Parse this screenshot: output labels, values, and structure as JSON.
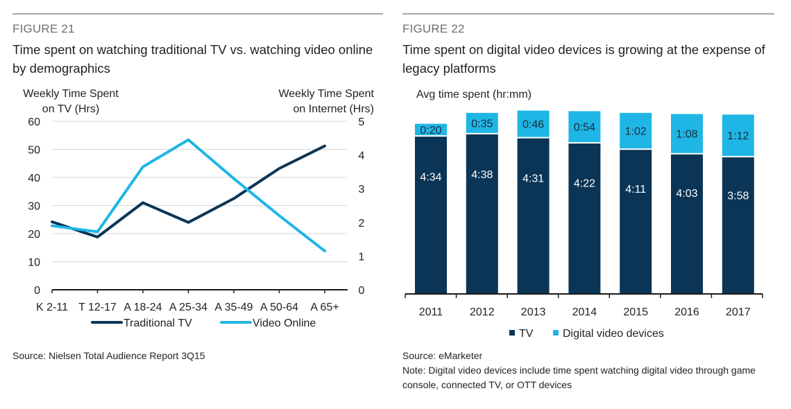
{
  "figures": [
    {
      "label": "FIGURE 21",
      "title": "Time spent on watching traditional TV vs. watching video online by demographics",
      "source": "Source: Nielsen Total Audience Report 3Q15"
    },
    {
      "label": "FIGURE 22",
      "title": "Time spent on digital video devices is growing at the expense of legacy platforms",
      "source": "Source: eMarketer",
      "note": "Note: Digital video devices include time spent watching digital video through game console, connected TV, or OTT devices"
    }
  ],
  "colors": {
    "tv": "#0b3556",
    "video": "#1fb6e6",
    "grid": "#dcdcdc",
    "axis": "#1a1a1a"
  },
  "chart_data": [
    {
      "type": "line",
      "title": "Time spent on watching traditional TV vs. watching video online by demographics",
      "categories": [
        "K 2-11",
        "T 12-17",
        "A 18-24",
        "A 25-34",
        "A 35-49",
        "A 50-64",
        "A 65+"
      ],
      "y_left_label": [
        "Weekly Time Spent",
        "on  TV (Hrs)"
      ],
      "y_right_label": [
        "Weekly Time Spent",
        "on Internet (Hrs)"
      ],
      "y_left_lim": [
        0,
        60
      ],
      "y_left_ticks": [
        0,
        10,
        20,
        30,
        40,
        50,
        60
      ],
      "y_right_lim": [
        0,
        5
      ],
      "y_right_ticks": [
        0,
        1,
        2,
        3,
        4,
        5
      ],
      "grid": true,
      "legend_position": "bottom",
      "series": [
        {
          "name": "Traditional TV",
          "axis": "left",
          "color": "#0b3556",
          "values": [
            24.2,
            18.8,
            31.0,
            24.0,
            32.5,
            43.2,
            51.2
          ]
        },
        {
          "name": "Video Online",
          "axis": "right",
          "color": "#1fb6e6",
          "values": [
            1.9,
            1.72,
            3.65,
            4.45,
            3.3,
            2.2,
            1.15
          ]
        }
      ]
    },
    {
      "type": "bar",
      "stacked": true,
      "title": "Time spent on digital video devices is growing at the expense of legacy platforms",
      "ylabel": "Avg time spent (hr:mm)",
      "categories": [
        "2011",
        "2012",
        "2013",
        "2014",
        "2015",
        "2016",
        "2017"
      ],
      "legend_position": "bottom",
      "series": [
        {
          "name": "TV",
          "color": "#0b3556",
          "labels": [
            "4:34",
            "4:38",
            "4:31",
            "4:22",
            "4:11",
            "4:03",
            "3:58"
          ],
          "values_minutes": [
            274,
            278,
            271,
            262,
            251,
            243,
            238
          ]
        },
        {
          "name": "Digital video devices",
          "color": "#1fb6e6",
          "labels": [
            "0:20",
            "0:35",
            "0:46",
            "0:54",
            "1:02",
            "1:08",
            "1:12"
          ],
          "values_minutes": [
            20,
            35,
            46,
            54,
            62,
            68,
            72
          ]
        }
      ]
    }
  ]
}
